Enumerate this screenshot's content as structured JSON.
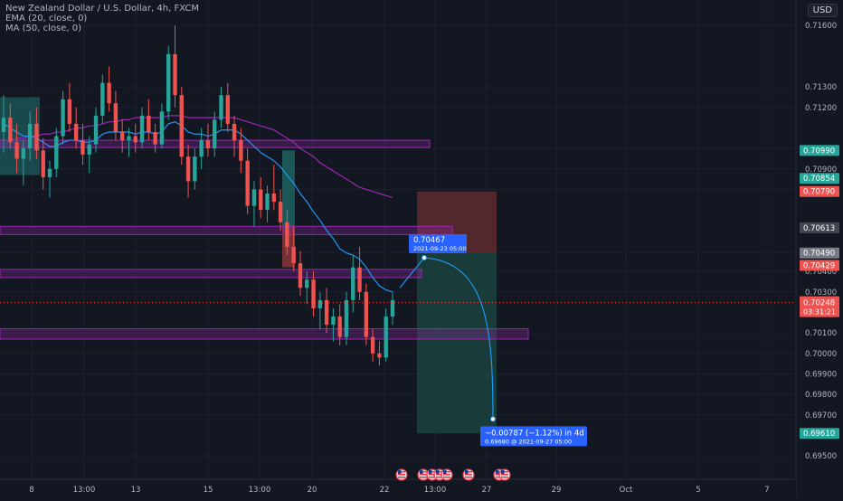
{
  "header": {
    "symbol_line": "New Zealand Dollar / U.S. Dollar, 4h, FXCM",
    "ema_line": "EMA (20, close, 0)",
    "ma_line": "MA (50, close, 0)",
    "currency": "USD"
  },
  "chart_data": {
    "type": "candlestick",
    "symbol": "NZDUSD",
    "timeframe": "4h",
    "ylim": [
      0.6943,
      0.7168
    ],
    "price_ticks": [
      "0.71600",
      "0.71300",
      "0.71200",
      "0.71000",
      "0.70900",
      "0.70800",
      "0.70490",
      "0.70400",
      "0.70300",
      "0.70100",
      "0.70000",
      "0.69900",
      "0.69800",
      "0.69700",
      "0.69500"
    ],
    "x_ticks": [
      "8",
      "13:00",
      "13",
      "15",
      "13:00",
      "20",
      "22",
      "13:00",
      "27",
      "29",
      "Oct",
      "5",
      "7"
    ],
    "candles": [
      [
        0.7108,
        0.7126,
        0.7098,
        0.7115
      ],
      [
        0.7115,
        0.7122,
        0.71,
        0.7103
      ],
      [
        0.7103,
        0.7112,
        0.7088,
        0.7095
      ],
      [
        0.7095,
        0.7104,
        0.7082,
        0.71
      ],
      [
        0.71,
        0.7118,
        0.7094,
        0.7112
      ],
      [
        0.7112,
        0.712,
        0.7095,
        0.7099
      ],
      [
        0.7099,
        0.7105,
        0.708,
        0.7086
      ],
      [
        0.7086,
        0.7094,
        0.7076,
        0.709
      ],
      [
        0.709,
        0.711,
        0.7086,
        0.7106
      ],
      [
        0.7106,
        0.7128,
        0.7102,
        0.7124
      ],
      [
        0.7124,
        0.7132,
        0.7108,
        0.7112
      ],
      [
        0.7112,
        0.712,
        0.71,
        0.7104
      ],
      [
        0.7104,
        0.7112,
        0.7092,
        0.7097
      ],
      [
        0.7097,
        0.7106,
        0.7088,
        0.7102
      ],
      [
        0.7102,
        0.712,
        0.7098,
        0.7116
      ],
      [
        0.7116,
        0.7136,
        0.7112,
        0.7132
      ],
      [
        0.7132,
        0.714,
        0.7118,
        0.7122
      ],
      [
        0.7122,
        0.7128,
        0.7104,
        0.7108
      ],
      [
        0.7108,
        0.7114,
        0.7098,
        0.7104
      ],
      [
        0.7104,
        0.711,
        0.7096,
        0.7106
      ],
      [
        0.7106,
        0.7112,
        0.7098,
        0.7103
      ],
      [
        0.7103,
        0.712,
        0.71,
        0.7116
      ],
      [
        0.7116,
        0.7124,
        0.7104,
        0.7108
      ],
      [
        0.7108,
        0.7112,
        0.7098,
        0.7102
      ],
      [
        0.7102,
        0.7122,
        0.71,
        0.7118
      ],
      [
        0.7118,
        0.715,
        0.7114,
        0.7146
      ],
      [
        0.7146,
        0.716,
        0.712,
        0.7126
      ],
      [
        0.7126,
        0.713,
        0.7092,
        0.7096
      ],
      [
        0.7096,
        0.7102,
        0.7076,
        0.7084
      ],
      [
        0.7084,
        0.71,
        0.708,
        0.7096
      ],
      [
        0.7096,
        0.711,
        0.709,
        0.7104
      ],
      [
        0.7104,
        0.7112,
        0.7096,
        0.71
      ],
      [
        0.71,
        0.7118,
        0.7096,
        0.7114
      ],
      [
        0.7114,
        0.713,
        0.711,
        0.7126
      ],
      [
        0.7126,
        0.7132,
        0.7108,
        0.7112
      ],
      [
        0.7112,
        0.7116,
        0.7096,
        0.7104
      ],
      [
        0.7104,
        0.711,
        0.7088,
        0.7094
      ],
      [
        0.7094,
        0.71,
        0.7068,
        0.7072
      ],
      [
        0.7072,
        0.7084,
        0.7062,
        0.708
      ],
      [
        0.708,
        0.7086,
        0.7066,
        0.707
      ],
      [
        0.707,
        0.7082,
        0.7064,
        0.7078
      ],
      [
        0.7078,
        0.7092,
        0.707,
        0.7074
      ],
      [
        0.7074,
        0.708,
        0.706,
        0.7064
      ],
      [
        0.7064,
        0.707,
        0.7048,
        0.7052
      ],
      [
        0.7052,
        0.7062,
        0.704,
        0.7044
      ],
      [
        0.7044,
        0.705,
        0.7028,
        0.7032
      ],
      [
        0.7032,
        0.704,
        0.7024,
        0.7036
      ],
      [
        0.7036,
        0.704,
        0.7018,
        0.7022
      ],
      [
        0.7022,
        0.703,
        0.7012,
        0.7026
      ],
      [
        0.7026,
        0.7032,
        0.701,
        0.7014
      ],
      [
        0.7014,
        0.7022,
        0.7006,
        0.7018
      ],
      [
        0.7018,
        0.7024,
        0.7004,
        0.7008
      ],
      [
        0.7008,
        0.703,
        0.7004,
        0.7026
      ],
      [
        0.7026,
        0.7048,
        0.702,
        0.7042
      ],
      [
        0.7042,
        0.7052,
        0.7026,
        0.703
      ],
      [
        0.703,
        0.7034,
        0.7004,
        0.7008
      ],
      [
        0.7008,
        0.7012,
        0.6996,
        0.7
      ],
      [
        0.7,
        0.7006,
        0.6994,
        0.6998
      ],
      [
        0.6998,
        0.7022,
        0.6996,
        0.7018
      ],
      [
        0.7018,
        0.703,
        0.7014,
        0.7026
      ]
    ],
    "ema_20": [
      0.7112,
      0.711,
      0.7108,
      0.7106,
      0.7106,
      0.7105,
      0.7103,
      0.7101,
      0.7101,
      0.7103,
      0.7104,
      0.7104,
      0.7103,
      0.7103,
      0.7104,
      0.7107,
      0.7108,
      0.7108,
      0.7108,
      0.7108,
      0.7107,
      0.7108,
      0.7108,
      0.7107,
      0.7108,
      0.7112,
      0.7113,
      0.7111,
      0.7108,
      0.7107,
      0.7107,
      0.7106,
      0.7107,
      0.7109,
      0.7109,
      0.7109,
      0.7107,
      0.7104,
      0.7101,
      0.7098,
      0.7096,
      0.7094,
      0.7091,
      0.7087,
      0.7083,
      0.7078,
      0.7074,
      0.7069,
      0.7065,
      0.706,
      0.7056,
      0.7051,
      0.7049,
      0.7048,
      0.7046,
      0.7042,
      0.7037,
      0.7033,
      0.7031,
      0.703
    ],
    "ma_50": [
      0.7104,
      0.7104,
      0.7105,
      0.7105,
      0.7106,
      0.7106,
      0.7107,
      0.7107,
      0.7108,
      0.7108,
      0.7109,
      0.711,
      0.711,
      0.7111,
      0.7111,
      0.7112,
      0.7113,
      0.7113,
      0.7114,
      0.7114,
      0.7115,
      0.7115,
      0.7115,
      0.7115,
      0.7115,
      0.7116,
      0.7116,
      0.7116,
      0.7115,
      0.7115,
      0.7115,
      0.7115,
      0.7115,
      0.7115,
      0.7115,
      0.7115,
      0.7114,
      0.7113,
      0.7112,
      0.7111,
      0.711,
      0.7109,
      0.7107,
      0.7105,
      0.7103,
      0.71,
      0.7098,
      0.7096,
      0.7093,
      0.7091,
      0.7089,
      0.7087,
      0.7085,
      0.7083,
      0.7081,
      0.708,
      0.7079,
      0.7078,
      0.7077,
      0.7076
    ],
    "zones": [
      {
        "low": 0.7101,
        "high": 0.7104
      },
      {
        "low": 0.7058,
        "high": 0.7062
      },
      {
        "low": 0.7037,
        "high": 0.7041
      },
      {
        "low": 0.7007,
        "high": 0.7012
      }
    ],
    "trade": {
      "entry": 0.7049,
      "stop": 0.7079,
      "target": 0.6961,
      "current_price": "0.70248",
      "countdown": "03:31:21"
    },
    "price_badges": [
      {
        "value": "0.70990",
        "kind": "target-green"
      },
      {
        "value": "0.70854",
        "kind": "target-green"
      },
      {
        "value": "0.70790",
        "kind": "stop-red"
      },
      {
        "value": "0.70613",
        "kind": "neutral"
      },
      {
        "value": "0.70490",
        "kind": "entry"
      },
      {
        "value": "0.70429",
        "kind": "stop-red"
      },
      {
        "value": "0.69610",
        "kind": "target-green"
      }
    ],
    "projection": {
      "start": {
        "price": "0.70467",
        "date": "2021-09-23 05:00"
      },
      "end": {
        "change": "−0.00787 (−1.12%) in 4d",
        "price": "0.69680",
        "date": "2021-09-27  05:00"
      }
    }
  },
  "colors": {
    "background": "#131722",
    "grid": "#1c2030",
    "up": "#26a69a",
    "down": "#ef5350",
    "ema": "#2196f3",
    "ma": "#9c27b0",
    "zone": "#9c27b0",
    "stop_zone": "#5b2a2f",
    "target_zone": "#1b3f3c",
    "price_axis_bg": "#131722",
    "callout_blue": "#2962ff"
  }
}
